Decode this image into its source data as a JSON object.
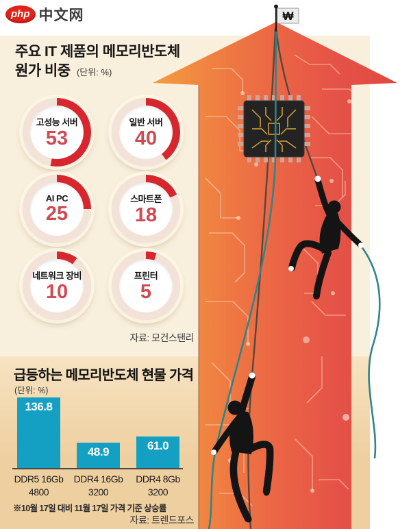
{
  "logo": {
    "badge": "php",
    "text": "中文网"
  },
  "illustration": {
    "flag_symbol": "₩"
  },
  "chart_data": [
    {
      "type": "pie",
      "variant": "donut-grid",
      "title": "주요 IT 제품의 메모리반도체 원가 비중",
      "title_line1": "주요 IT 제품의 메모리반도체",
      "title_line2": "원가 비중",
      "unit_label": "(단위: %)",
      "categories": [
        "고성능 서버",
        "일반 서버",
        "AI PC",
        "스마트폰",
        "네트워크 장비",
        "프린터"
      ],
      "values": [
        53,
        40,
        25,
        18,
        10,
        5
      ],
      "source": "자료: 모건스탠리",
      "ring_color": "#d7262d",
      "ring_rest_color": "#f2e2d7",
      "value_color": "#d04a52",
      "legend": "none",
      "grid": false
    },
    {
      "type": "bar",
      "title": "급등하는 메모리반도체 현물 가격",
      "unit_label": "(단위: %)",
      "categories": [
        "DDR5 16Gb 4800",
        "DDR4 16Gb 3200",
        "DDR4 8Gb 3200"
      ],
      "category_lines": [
        [
          "DDR5 16Gb",
          "4800"
        ],
        [
          "DDR4 16Gb",
          "3200"
        ],
        [
          "DDR4 8Gb",
          "3200"
        ]
      ],
      "values": [
        136.8,
        48.9,
        61.0
      ],
      "bar_color": "#14a0c2",
      "ylim": [
        0,
        140
      ],
      "grid": false,
      "legend": "none",
      "footnote": "※10월 17일 대비 11월 17일 가격 기준 상승률",
      "source": "자료: 트렌드포스"
    }
  ]
}
